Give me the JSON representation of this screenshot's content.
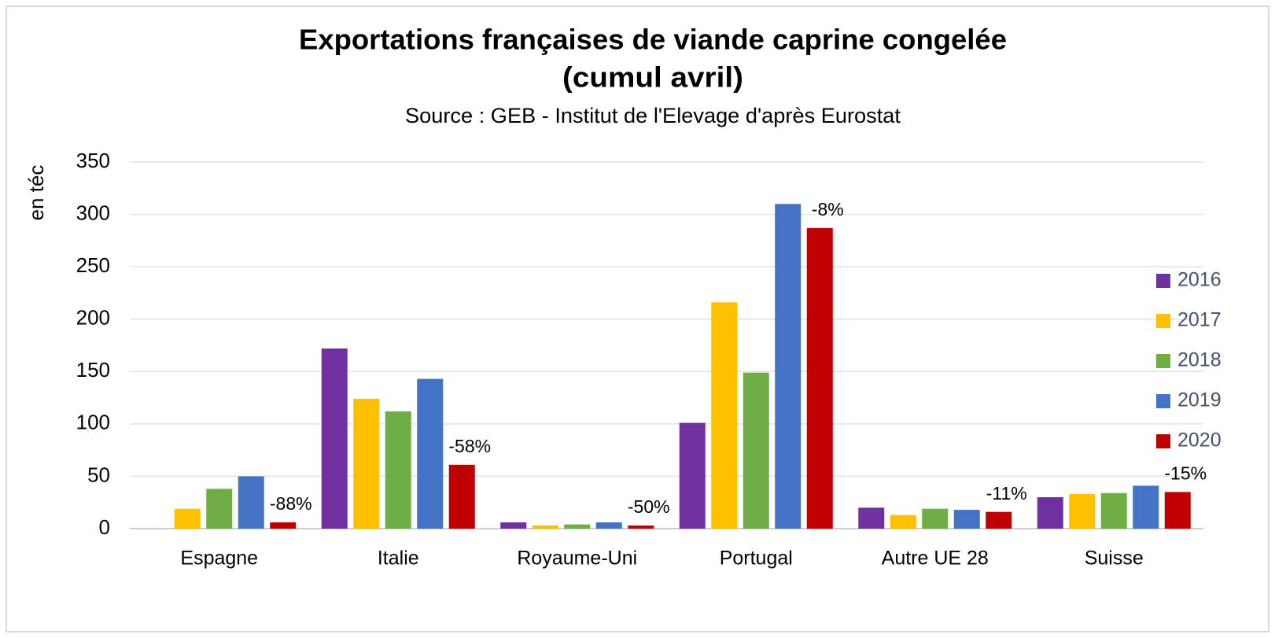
{
  "chart_data": {
    "type": "bar",
    "title": "Exportations françaises de viande caprine congelée",
    "title_line2": "(cumul avril)",
    "subtitle": "Source : GEB - Institut de l'Elevage d'après Eurostat",
    "y_label": "en téc",
    "categories": [
      "Espagne",
      "Italie",
      "Royaume-Uni",
      "Portugal",
      "Autre UE 28",
      "Suisse"
    ],
    "series": [
      {
        "name": "2016",
        "color": "#7030a0",
        "values": [
          null,
          172,
          6,
          101,
          20,
          30
        ]
      },
      {
        "name": "2017",
        "color": "#ffc000",
        "values": [
          19,
          124,
          3,
          216,
          13,
          33
        ]
      },
      {
        "name": "2018",
        "color": "#70ad47",
        "values": [
          38,
          112,
          4,
          149,
          19,
          34
        ]
      },
      {
        "name": "2019",
        "color": "#4472c4",
        "values": [
          50,
          143,
          6,
          310,
          18,
          41
        ]
      },
      {
        "name": "2020",
        "color": "#c00000",
        "values": [
          6,
          61,
          3,
          287,
          16,
          35
        ]
      }
    ],
    "change_labels": [
      "-88%",
      "-58%",
      "-50%",
      "-8%",
      "-11%",
      "-15%"
    ],
    "ylim": [
      0,
      350
    ],
    "yticks": [
      0,
      50,
      100,
      150,
      200,
      250,
      300,
      350
    ],
    "grid": true,
    "legend": "right"
  }
}
